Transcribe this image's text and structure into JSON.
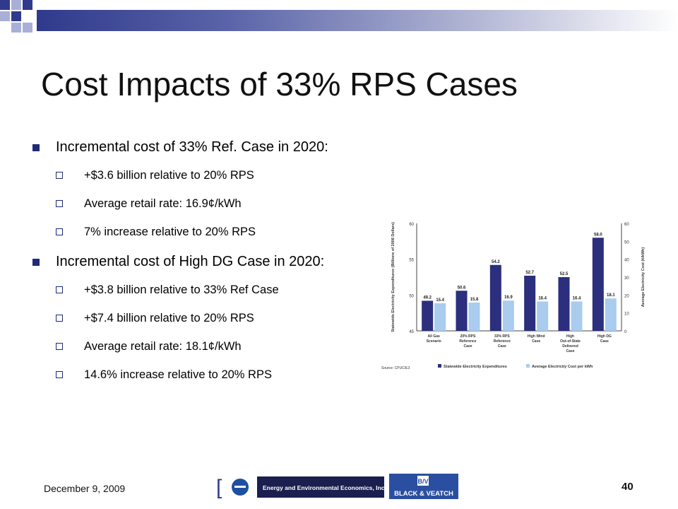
{
  "slide": {
    "title": "Cost Impacts of 33% RPS Cases",
    "date": "December 9, 2009",
    "page_number": "40"
  },
  "bullets": [
    {
      "text": "Incremental cost of 33% Ref. Case in 2020:",
      "sub": [
        "+$3.6 billion relative to 20% RPS",
        "Average retail rate:  16.9¢/kWh",
        "7% increase relative to 20% RPS"
      ]
    },
    {
      "text": "Incremental cost of High DG Case in 2020:",
      "sub": [
        "+$3.8 billion relative to 33% Ref Case",
        "+$7.4 billion relative to 20% RPS",
        "Average retail rate:  18.1¢/kWh",
        "14.6% increase relative to 20% RPS"
      ]
    }
  ],
  "logos": {
    "e3_text": "Energy and Environmental Economics, Inc.",
    "bv_text": "BLACK & VEATCH"
  },
  "colors": {
    "dark_bar": "#2b2f7d",
    "light_bar": "#a9ccef",
    "accent": "#1f2a7a"
  },
  "chart_data": {
    "type": "bar",
    "categories": [
      "All Gas Scenario",
      "20% RPS Reference Case",
      "33% RPS Reference Case",
      "High Wind Case",
      "High Out-of-State Delivered Case",
      "High DG Case"
    ],
    "series": [
      {
        "name": "Statewide Electricity Expenditures",
        "values": [
          49.2,
          50.6,
          54.2,
          52.7,
          52.5,
          58.0
        ],
        "labels": [
          "49.2",
          "50.6",
          "54.2",
          "52.7",
          "52.5",
          "58.0"
        ]
      },
      {
        "name": "Average Electricity Cost per kWh",
        "values": [
          15.4,
          15.8,
          16.9,
          16.4,
          16.4,
          18.1
        ],
        "labels": [
          "15.4",
          "15.8",
          "16.9",
          "16.4",
          "16.4",
          "18.1"
        ]
      }
    ],
    "ylabel": "Statewide Electricity Expenditures (Billions of 2008 Dollars)",
    "y2label": "Average Electricity Cost (¢/kWh)",
    "ylim": [
      45,
      60
    ],
    "y2lim": [
      0,
      60
    ],
    "yticks": [
      "45",
      "50",
      "55",
      "60"
    ],
    "y2ticks": [
      "0",
      "10",
      "20",
      "30",
      "40",
      "50",
      "60"
    ],
    "source": "Source: CPUC/E3"
  }
}
